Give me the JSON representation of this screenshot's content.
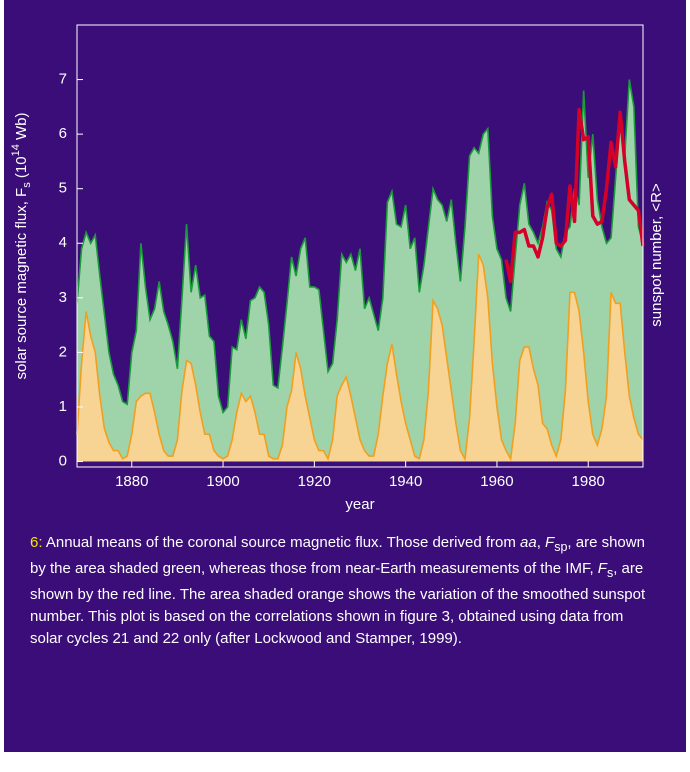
{
  "chart_data": {
    "type": "area",
    "y_label": [
      "solar source magnetic flux, F",
      "s",
      " (10",
      "14",
      " Wb)"
    ],
    "y2_label": "sunspot number, <R>",
    "x_label": "year",
    "xlim": [
      1868,
      1992
    ],
    "xticks": [
      1880,
      1900,
      1920,
      1940,
      1960,
      1980
    ],
    "ylim": [
      -0.1,
      8
    ],
    "yticks": [
      0,
      1,
      2,
      3,
      4,
      5,
      6,
      7
    ],
    "x": [
      1868,
      1869,
      1870,
      1871,
      1872,
      1873,
      1874,
      1875,
      1876,
      1877,
      1878,
      1879,
      1880,
      1881,
      1882,
      1883,
      1884,
      1885,
      1886,
      1887,
      1888,
      1889,
      1890,
      1891,
      1892,
      1893,
      1894,
      1895,
      1896,
      1897,
      1898,
      1899,
      1900,
      1901,
      1902,
      1903,
      1904,
      1905,
      1906,
      1907,
      1908,
      1909,
      1910,
      1911,
      1912,
      1913,
      1914,
      1915,
      1916,
      1917,
      1918,
      1919,
      1920,
      1921,
      1922,
      1923,
      1924,
      1925,
      1926,
      1927,
      1928,
      1929,
      1930,
      1931,
      1932,
      1933,
      1934,
      1935,
      1936,
      1937,
      1938,
      1939,
      1940,
      1941,
      1942,
      1943,
      1944,
      1945,
      1946,
      1947,
      1948,
      1949,
      1950,
      1951,
      1952,
      1953,
      1954,
      1955,
      1956,
      1957,
      1958,
      1959,
      1960,
      1961,
      1962,
      1963,
      1964,
      1965,
      1966,
      1967,
      1968,
      1969,
      1970,
      1971,
      1972,
      1973,
      1974,
      1975,
      1976,
      1977,
      1978,
      1979,
      1980,
      1981,
      1982,
      1983,
      1984,
      1985,
      1986,
      1987,
      1988,
      1989,
      1990,
      1991,
      1992
    ],
    "series": [
      {
        "kind": "area",
        "color": "#9fd3a9",
        "line_color": "#1a9a3a",
        "values": [
          2.9,
          3.9,
          4.2,
          4.0,
          4.15,
          3.4,
          2.7,
          2.0,
          1.6,
          1.4,
          1.1,
          1.05,
          2.0,
          2.4,
          4.0,
          3.2,
          2.6,
          2.8,
          3.3,
          2.75,
          2.5,
          2.2,
          1.7,
          3.0,
          4.35,
          3.1,
          3.6,
          3.0,
          3.05,
          2.3,
          2.2,
          1.2,
          0.9,
          1.0,
          2.1,
          2.05,
          2.6,
          2.25,
          2.95,
          3.0,
          3.2,
          3.1,
          2.5,
          1.4,
          1.35,
          2.1,
          2.9,
          3.75,
          3.4,
          3.9,
          4.1,
          3.2,
          3.2,
          3.15,
          2.4,
          1.65,
          1.8,
          2.6,
          3.8,
          3.65,
          3.8,
          3.5,
          3.9,
          2.8,
          3.0,
          2.7,
          2.4,
          3.0,
          4.75,
          4.95,
          4.35,
          4.3,
          4.7,
          3.9,
          4.1,
          3.1,
          3.6,
          4.3,
          5.0,
          4.8,
          4.7,
          4.4,
          4.8,
          4.0,
          3.3,
          4.3,
          5.6,
          5.75,
          5.65,
          6.0,
          6.1,
          4.5,
          3.9,
          3.7,
          3.0,
          2.75,
          3.75,
          4.7,
          5.1,
          4.35,
          4.2,
          4.0,
          4.3,
          4.75,
          4.6,
          3.9,
          3.75,
          4.2,
          4.3,
          5.0,
          4.7,
          6.8,
          5.2,
          6.0,
          4.8,
          4.3,
          4.0,
          4.1,
          5.2,
          6.3,
          5.6,
          7.0,
          6.5,
          4.3,
          4.0
        ]
      },
      {
        "kind": "area",
        "color": "#f7d394",
        "line_color": "#f0a020",
        "values": [
          0.5,
          1.8,
          2.75,
          2.3,
          2.0,
          1.2,
          0.6,
          0.35,
          0.2,
          0.2,
          0.05,
          0.1,
          0.5,
          1.1,
          1.2,
          1.25,
          1.25,
          0.9,
          0.5,
          0.2,
          0.1,
          0.1,
          0.4,
          1.3,
          1.85,
          1.8,
          1.4,
          0.9,
          0.5,
          0.5,
          0.2,
          0.1,
          0.05,
          0.1,
          0.4,
          0.9,
          1.25,
          1.1,
          1.2,
          0.9,
          0.5,
          0.5,
          0.1,
          0.05,
          0.05,
          0.3,
          1.0,
          1.3,
          2.0,
          1.7,
          1.2,
          0.8,
          0.4,
          0.2,
          0.2,
          0.05,
          0.4,
          1.2,
          1.4,
          1.55,
          1.2,
          0.8,
          0.4,
          0.2,
          0.1,
          0.1,
          0.5,
          1.2,
          1.8,
          2.15,
          1.6,
          1.1,
          0.7,
          0.4,
          0.1,
          0.05,
          0.4,
          1.3,
          2.95,
          2.8,
          2.5,
          1.9,
          1.3,
          0.7,
          0.2,
          0.05,
          0.8,
          2.2,
          3.8,
          3.6,
          3.0,
          1.8,
          1.0,
          0.4,
          0.2,
          0.05,
          0.7,
          1.85,
          2.1,
          2.1,
          1.7,
          1.4,
          0.7,
          0.6,
          0.3,
          0.1,
          0.4,
          1.3,
          3.1,
          3.1,
          2.75,
          2.0,
          1.1,
          0.5,
          0.3,
          0.6,
          1.2,
          3.1,
          2.9,
          2.9,
          2.0,
          1.2,
          0.8,
          0.5,
          0.4
        ]
      },
      {
        "kind": "line",
        "color": "#d4002a",
        "values": [
          null,
          null,
          null,
          null,
          null,
          null,
          null,
          null,
          null,
          null,
          null,
          null,
          null,
          null,
          null,
          null,
          null,
          null,
          null,
          null,
          null,
          null,
          null,
          null,
          null,
          null,
          null,
          null,
          null,
          null,
          null,
          null,
          null,
          null,
          null,
          null,
          null,
          null,
          null,
          null,
          null,
          null,
          null,
          null,
          null,
          null,
          null,
          null,
          null,
          null,
          null,
          null,
          null,
          null,
          null,
          null,
          null,
          null,
          null,
          null,
          null,
          null,
          null,
          null,
          null,
          null,
          null,
          null,
          null,
          null,
          null,
          null,
          null,
          null,
          null,
          null,
          null,
          null,
          null,
          null,
          null,
          null,
          null,
          null,
          null,
          null,
          null,
          null,
          null,
          null,
          null,
          null,
          null,
          null,
          3.7,
          3.3,
          4.2,
          4.2,
          4.25,
          3.95,
          3.95,
          3.75,
          4.1,
          4.65,
          4.9,
          4.0,
          3.95,
          4.05,
          5.05,
          4.4,
          6.45,
          5.9,
          5.95,
          4.5,
          4.35,
          4.4,
          5.0,
          5.85,
          5.4,
          6.4,
          5.5,
          4.8,
          4.7,
          4.6,
          3.95
        ]
      }
    ],
    "caption": {
      "label": "6:",
      "parts": [
        " Annual means of the coronal source magnetic flux. Those derived from ",
        "aa",
        ", ",
        "F",
        "sp",
        ", are shown by the area shaded green, whereas those from near-Earth measurements of the IMF, ",
        "F",
        "s",
        ", are shown by the red line. The area shaded orange shows the variation of the smoothed sunspot number. This plot is based on the correlations shown in figure 3, obtained using data from solar cycles 21 and 22 only (after Lockwood and Stamper, 1999)."
      ]
    }
  }
}
